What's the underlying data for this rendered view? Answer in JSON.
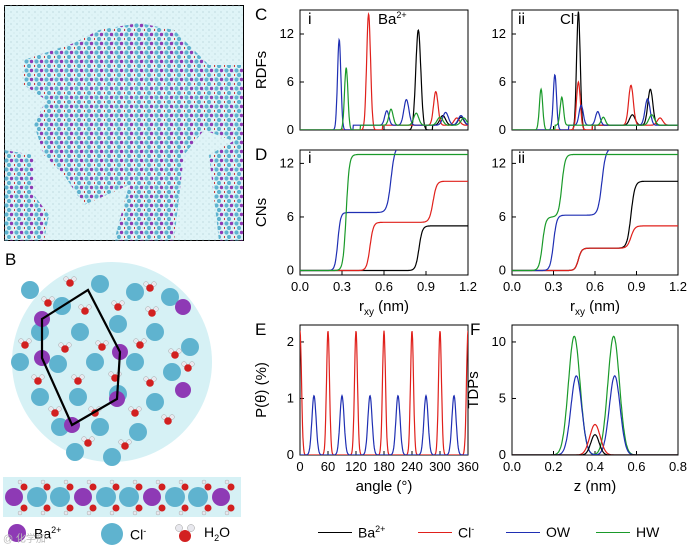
{
  "panel_letters": {
    "a": "A",
    "b": "B",
    "c": "C",
    "d": "D",
    "e": "E",
    "f": "F"
  },
  "sub_labels": {
    "c_i": "i",
    "c_ii": "ii",
    "d_i": "i",
    "d_ii": "ii"
  },
  "ion_labels": {
    "ba": "Ba2+",
    "cl": "Cl-"
  },
  "species_legend": {
    "ba": "Ba",
    "ba_sup": "2+",
    "cl": "Cl",
    "cl_sup": "-",
    "h2o": "H",
    "h2o_sub": "2",
    "h2o_o": "O"
  },
  "curve_legend": [
    {
      "label": "Ba2+",
      "color": "#000000"
    },
    {
      "label": "Cl-",
      "color": "#e0201b"
    },
    {
      "label": "OW",
      "color": "#1f2fb3"
    },
    {
      "label": "HW",
      "color": "#1a9a2a"
    }
  ],
  "colors": {
    "ba": "#8e3ab5",
    "cl": "#5fb3cf",
    "ow": "#d22020",
    "hw": "#e8e8ee",
    "bg": "#d6f1f5"
  },
  "watermark": "@ 化学加",
  "chart_data": [
    {
      "id": "C-i",
      "type": "line",
      "ylabel": "RDFs",
      "xlim": [
        0,
        1.2
      ],
      "ylim": [
        0,
        15
      ],
      "yticks": [
        0,
        6,
        12
      ],
      "xticks": [
        0,
        0.3,
        0.6,
        0.9,
        1.2
      ],
      "series": [
        {
          "name": "Ba2+",
          "color": "#000000",
          "peaks": [
            [
              0.845,
              12.5,
              0.018
            ],
            [
              1.02,
              1.2,
              0.02
            ],
            [
              1.15,
              1.0,
              0.02
            ]
          ]
        },
        {
          "name": "Cl-",
          "color": "#e0201b",
          "peaks": [
            [
              0.49,
              14.5,
              0.014
            ],
            [
              0.97,
              4.2,
              0.016
            ],
            [
              1.12,
              0.9,
              0.02
            ]
          ]
        },
        {
          "name": "OW",
          "color": "#1f2fb3",
          "peaks": [
            [
              0.28,
              11.3,
              0.012
            ],
            [
              0.62,
              1.8,
              0.015
            ],
            [
              0.76,
              3.2,
              0.018
            ],
            [
              1.04,
              1.6,
              0.02
            ],
            [
              1.15,
              1.2,
              0.02
            ]
          ]
        },
        {
          "name": "HW",
          "color": "#1a9a2a",
          "peaks": [
            [
              0.33,
              7.8,
              0.012
            ],
            [
              0.65,
              2.0,
              0.015
            ],
            [
              0.83,
              1.5,
              0.018
            ],
            [
              1.0,
              1.0,
              0.02
            ],
            [
              1.17,
              0.9,
              0.02
            ]
          ]
        }
      ]
    },
    {
      "id": "C-ii",
      "type": "line",
      "xlim": [
        0,
        1.2
      ],
      "ylim": [
        0,
        15
      ],
      "yticks": [
        0,
        6,
        12
      ],
      "xticks": [
        0,
        0.3,
        0.6,
        0.9,
        1.2
      ],
      "series": [
        {
          "name": "Ba2+",
          "color": "#000000",
          "peaks": [
            [
              0.48,
              14.8,
              0.013
            ],
            [
              0.87,
              1.3,
              0.02
            ],
            [
              1.0,
              4.5,
              0.018
            ]
          ]
        },
        {
          "name": "Cl-",
          "color": "#e0201b",
          "peaks": [
            [
              0.48,
              6.0,
              0.014
            ],
            [
              0.86,
              5.0,
              0.017
            ],
            [
              1.07,
              0.9,
              0.02
            ]
          ]
        },
        {
          "name": "OW",
          "color": "#1f2fb3",
          "peaks": [
            [
              0.31,
              6.9,
              0.012
            ],
            [
              0.5,
              2.5,
              0.015
            ],
            [
              0.62,
              1.7,
              0.016
            ],
            [
              0.98,
              3.3,
              0.018
            ]
          ]
        },
        {
          "name": "HW",
          "color": "#1a9a2a",
          "peaks": [
            [
              0.21,
              5.1,
              0.012
            ],
            [
              0.36,
              3.5,
              0.012
            ],
            [
              0.66,
              1.0,
              0.015
            ],
            [
              1.01,
              1.3,
              0.02
            ]
          ]
        }
      ]
    },
    {
      "id": "D-i",
      "type": "line",
      "ylabel": "CNs",
      "xlabel": "r_xy (nm)",
      "xlim": [
        0,
        1.2
      ],
      "ylim": [
        -0.5,
        13.5
      ],
      "yticks": [
        0,
        6,
        12
      ],
      "xticks": [
        0,
        0.3,
        0.6,
        0.9,
        1.2
      ],
      "xticklabels": [
        "0.0",
        "0.3",
        "0.6",
        "0.9",
        "1.2"
      ],
      "series": [
        {
          "name": "Ba2+",
          "color": "#000000",
          "steps": [
            [
              0.85,
              5.0,
              0.012
            ]
          ]
        },
        {
          "name": "Cl-",
          "color": "#e0201b",
          "steps": [
            [
              0.5,
              5.4,
              0.012
            ],
            [
              0.95,
              4.6,
              0.013
            ]
          ]
        },
        {
          "name": "OW",
          "color": "#1f2fb3",
          "steps": [
            [
              0.27,
              6.5,
              0.01
            ],
            [
              0.65,
              7.5,
              0.014
            ]
          ]
        },
        {
          "name": "HW",
          "color": "#1a9a2a",
          "steps": [
            [
              0.33,
              13.0,
              0.011
            ]
          ]
        }
      ]
    },
    {
      "id": "D-ii",
      "type": "line",
      "xlabel": "r_xy (nm)",
      "xlim": [
        0,
        1.2
      ],
      "ylim": [
        -0.5,
        13.5
      ],
      "yticks": [
        0,
        6,
        12
      ],
      "xticks": [
        0,
        0.3,
        0.6,
        0.9,
        1.2
      ],
      "xticklabels": [
        "0.0",
        "0.3",
        "0.6",
        "0.9",
        "1.2"
      ],
      "series": [
        {
          "name": "Ba2+",
          "color": "#000000",
          "steps": [
            [
              0.48,
              2.5,
              0.012
            ],
            [
              0.86,
              7.5,
              0.014
            ]
          ]
        },
        {
          "name": "Cl-",
          "color": "#e0201b",
          "steps": [
            [
              0.48,
              2.5,
              0.012
            ],
            [
              0.86,
              2.5,
              0.014
            ]
          ]
        },
        {
          "name": "OW",
          "color": "#1f2fb3",
          "steps": [
            [
              0.3,
              6.2,
              0.012
            ],
            [
              0.65,
              7.5,
              0.014
            ]
          ]
        },
        {
          "name": "HW",
          "color": "#1a9a2a",
          "steps": [
            [
              0.22,
              6.0,
              0.012
            ],
            [
              0.36,
              7.0,
              0.012
            ]
          ]
        }
      ]
    },
    {
      "id": "E",
      "type": "line",
      "ylabel": "P(θ) (%)",
      "xlabel": "angle (°)",
      "xlim": [
        0,
        360
      ],
      "ylim": [
        0,
        2.3
      ],
      "yticks": [
        0,
        1,
        2
      ],
      "xticks": [
        0,
        60,
        120,
        180,
        240,
        300,
        360
      ],
      "series": [
        {
          "name": "Cl-",
          "color": "#e0201b",
          "centers": [
            0,
            60,
            120,
            180,
            240,
            300,
            360
          ],
          "height": 2.2,
          "width": 3.2
        },
        {
          "name": "OW",
          "color": "#1f2fb3",
          "centers": [
            30,
            90,
            150,
            210,
            270,
            330
          ],
          "height": 1.05,
          "width": 4.5
        }
      ]
    },
    {
      "id": "F",
      "type": "line",
      "ylabel": "TDPs",
      "xlabel": "z (nm)",
      "xlim": [
        0,
        0.8
      ],
      "ylim": [
        0,
        11.5
      ],
      "yticks": [
        0,
        5,
        10
      ],
      "xticks": [
        0,
        0.2,
        0.4,
        0.6,
        0.8
      ],
      "xticklabels": [
        "0.0",
        "0.2",
        "0.4",
        "0.6",
        "0.8"
      ],
      "series": [
        {
          "name": "HW",
          "color": "#1a9a2a",
          "peaks": [
            [
              0.3,
              10.5,
              0.028
            ],
            [
              0.49,
              10.5,
              0.028
            ]
          ]
        },
        {
          "name": "OW",
          "color": "#1f2fb3",
          "peaks": [
            [
              0.31,
              7.0,
              0.026
            ],
            [
              0.495,
              7.0,
              0.026
            ]
          ]
        },
        {
          "name": "Cl-",
          "color": "#e0201b",
          "peaks": [
            [
              0.4,
              2.7,
              0.025
            ]
          ]
        },
        {
          "name": "Ba2+",
          "color": "#000000",
          "peaks": [
            [
              0.4,
              1.8,
              0.02
            ]
          ]
        }
      ]
    }
  ]
}
